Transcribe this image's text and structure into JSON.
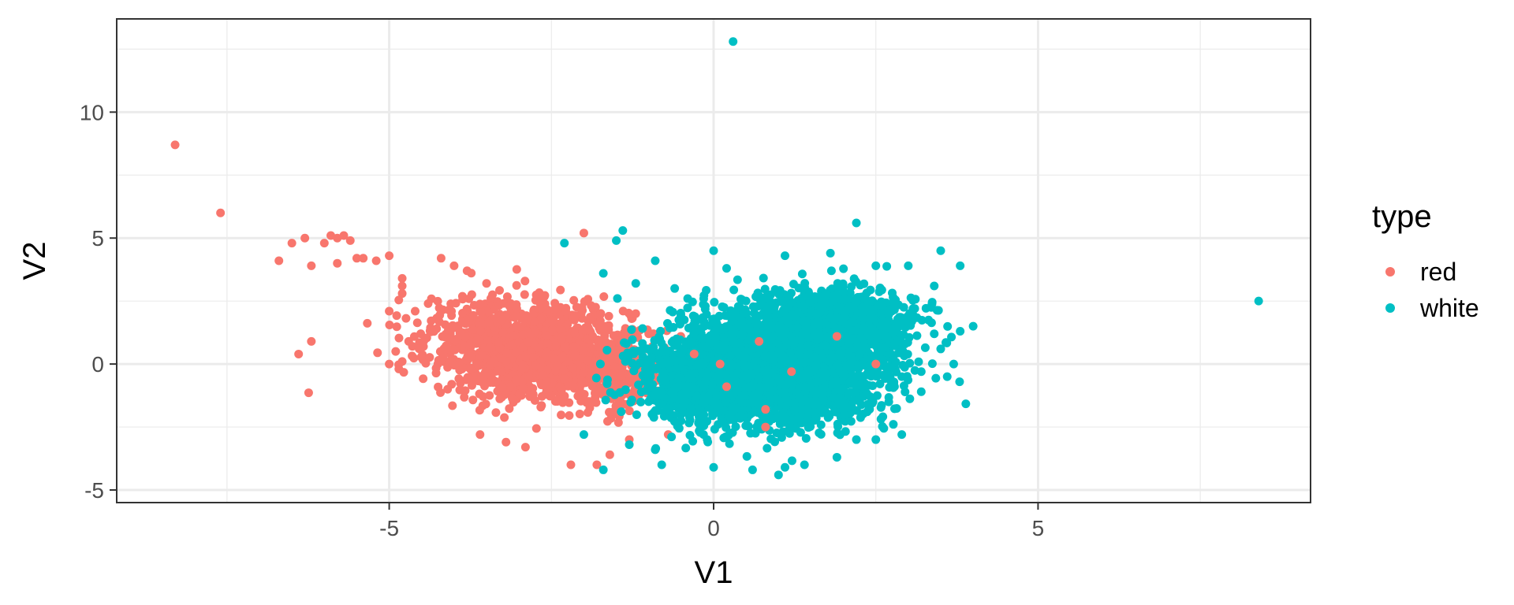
{
  "chart_data": {
    "type": "scatter",
    "xlabel": "V1",
    "ylabel": "V2",
    "xlim": [
      -9.2,
      9.2
    ],
    "ylim": [
      -5.5,
      13.7
    ],
    "x_ticks": [
      -5,
      0,
      5
    ],
    "x_tick_labels": [
      "-5",
      "0",
      "5"
    ],
    "y_ticks": [
      -5,
      0,
      5,
      10
    ],
    "y_tick_labels": [
      "-5",
      "0",
      "5",
      "10"
    ],
    "grid": true,
    "legend": {
      "title": "type",
      "position": "right",
      "entries": [
        {
          "label": "red",
          "color": "#F8766D"
        },
        {
          "label": "white",
          "color": "#00BFC4"
        }
      ]
    },
    "series": [
      {
        "name": "red",
        "color": "#F8766D",
        "clusters": [
          {
            "cx": -2.6,
            "cy": 0.4,
            "sx": 0.65,
            "sy": 0.9,
            "n": 1300
          },
          {
            "cx": -3.5,
            "cy": 1.1,
            "sx": 0.7,
            "sy": 0.8,
            "n": 280
          },
          {
            "cx": -1.5,
            "cy": -0.3,
            "sx": 0.4,
            "sy": 0.9,
            "n": 200
          }
        ],
        "points": [
          [
            -8.3,
            8.7
          ],
          [
            -7.6,
            6.0
          ],
          [
            -6.7,
            4.1
          ],
          [
            -6.5,
            4.8
          ],
          [
            -6.3,
            5.0
          ],
          [
            -6.2,
            3.9
          ],
          [
            -6.0,
            4.8
          ],
          [
            -5.9,
            5.1
          ],
          [
            -5.8,
            4.0
          ],
          [
            -5.8,
            5.0
          ],
          [
            -5.7,
            5.1
          ],
          [
            -5.6,
            4.9
          ],
          [
            -5.5,
            4.2
          ],
          [
            -5.4,
            4.2
          ],
          [
            -5.2,
            4.1
          ],
          [
            -5.0,
            4.3
          ],
          [
            -4.8,
            3.4
          ],
          [
            -4.8,
            3.1
          ],
          [
            -5.0,
            2.1
          ],
          [
            -4.8,
            2.8
          ],
          [
            -4.6,
            2.1
          ],
          [
            -4.7,
            0.9
          ],
          [
            -4.9,
            0.5
          ],
          [
            -4.8,
            0.1
          ],
          [
            -5.0,
            0.0
          ],
          [
            -6.2,
            0.9
          ],
          [
            -4.4,
            2.4
          ],
          [
            -4.2,
            4.2
          ],
          [
            -4.0,
            3.9
          ],
          [
            -3.8,
            3.7
          ],
          [
            -3.5,
            3.2
          ],
          [
            -3.6,
            -2.8
          ],
          [
            -3.2,
            -3.1
          ],
          [
            -2.9,
            -3.3
          ],
          [
            -2.2,
            -4.0
          ],
          [
            -1.8,
            -4.0
          ],
          [
            -2.0,
            5.2
          ],
          [
            -1.6,
            -3.6
          ],
          [
            -1.3,
            -3.0
          ],
          [
            -0.7,
            -2.8
          ],
          [
            -0.5,
            -1.0
          ],
          [
            -0.3,
            0.4
          ],
          [
            0.1,
            0.0
          ],
          [
            0.2,
            -0.9
          ],
          [
            0.7,
            0.9
          ],
          [
            0.8,
            -1.8
          ],
          [
            0.8,
            -2.5
          ],
          [
            1.2,
            -0.3
          ],
          [
            1.9,
            1.1
          ],
          [
            2.5,
            0.0
          ],
          [
            -1.0,
            1.2
          ],
          [
            -1.1,
            0.3
          ],
          [
            -0.9,
            -0.5
          ],
          [
            -1.2,
            2.0
          ],
          [
            -4.1,
            -1.0
          ]
        ]
      },
      {
        "name": "white",
        "color": "#00BFC4",
        "clusters": [
          {
            "cx": 0.9,
            "cy": -0.1,
            "sx": 0.8,
            "sy": 1.1,
            "n": 2800
          },
          {
            "cx": 1.9,
            "cy": 1.4,
            "sx": 0.6,
            "sy": 0.8,
            "n": 900
          },
          {
            "cx": -0.2,
            "cy": -0.8,
            "sx": 0.55,
            "sy": 0.8,
            "n": 500
          }
        ],
        "points": [
          [
            0.3,
            12.8
          ],
          [
            8.4,
            2.5
          ],
          [
            2.2,
            5.6
          ],
          [
            3.5,
            4.5
          ],
          [
            3.8,
            3.9
          ],
          [
            4.0,
            1.5
          ],
          [
            3.8,
            1.3
          ],
          [
            3.7,
            0.0
          ],
          [
            3.6,
            -0.5
          ],
          [
            3.2,
            -1.1
          ],
          [
            2.9,
            -2.8
          ],
          [
            2.5,
            -3.0
          ],
          [
            2.2,
            -3.0
          ],
          [
            1.9,
            -3.7
          ],
          [
            1.4,
            -4.0
          ],
          [
            1.1,
            -4.1
          ],
          [
            1.0,
            -4.4
          ],
          [
            0.6,
            -4.2
          ],
          [
            0.0,
            -4.1
          ],
          [
            -0.8,
            -4.0
          ],
          [
            -1.7,
            -4.2
          ],
          [
            -2.3,
            4.8
          ],
          [
            -1.5,
            4.9
          ],
          [
            -1.4,
            5.3
          ],
          [
            -0.9,
            4.1
          ],
          [
            0.0,
            4.5
          ],
          [
            0.2,
            3.8
          ],
          [
            1.1,
            4.3
          ],
          [
            1.8,
            4.4
          ],
          [
            2.5,
            3.9
          ],
          [
            3.0,
            3.9
          ],
          [
            3.4,
            3.1
          ],
          [
            3.1,
            2.2
          ],
          [
            2.8,
            2.5
          ],
          [
            -1.7,
            3.6
          ],
          [
            -1.2,
            3.2
          ],
          [
            -0.6,
            3.0
          ],
          [
            -0.4,
            2.6
          ],
          [
            -2.0,
            -2.8
          ],
          [
            -1.3,
            -3.2
          ],
          [
            -0.9,
            -3.4
          ],
          [
            -0.1,
            -3.0
          ],
          [
            2.7,
            -1.5
          ],
          [
            2.9,
            -0.5
          ],
          [
            3.4,
            1.2
          ],
          [
            3.5,
            0.6
          ],
          [
            3.2,
            -0.3
          ],
          [
            0.5,
            2.5
          ],
          [
            1.4,
            3.0
          ],
          [
            2.0,
            2.9
          ]
        ]
      }
    ]
  }
}
